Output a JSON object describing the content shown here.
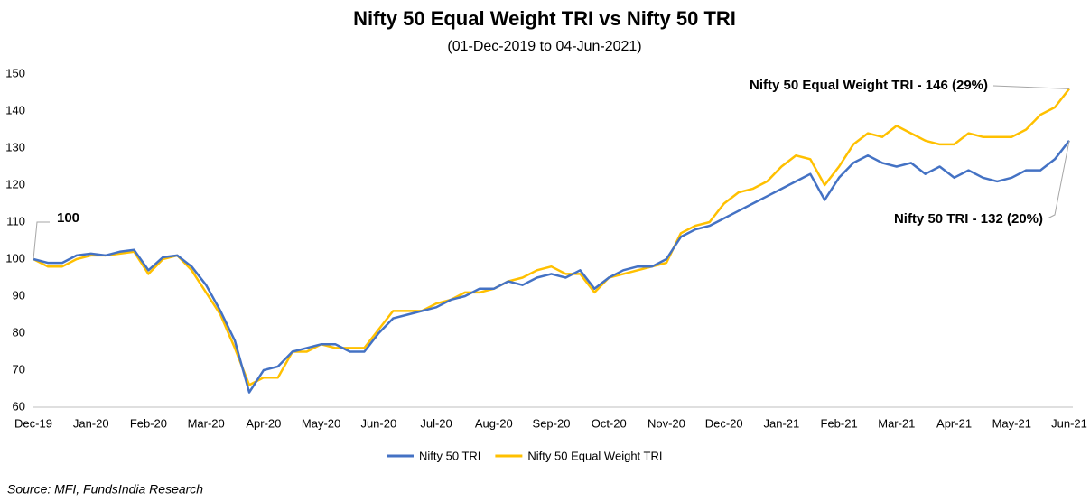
{
  "chart_data": {
    "type": "line",
    "title": "Nifty 50 Equal Weight TRI vs Nifty 50 TRI",
    "subtitle": "(01-Dec-2019 to 04-Jun-2021)",
    "categories": [
      "Dec-19",
      null,
      null,
      null,
      "Jan-20",
      null,
      null,
      null,
      "Feb-20",
      null,
      null,
      null,
      "Mar-20",
      null,
      null,
      null,
      "Apr-20",
      null,
      null,
      null,
      "May-20",
      null,
      null,
      null,
      "Jun-20",
      null,
      null,
      null,
      "Jul-20",
      null,
      null,
      null,
      "Aug-20",
      null,
      null,
      null,
      "Sep-20",
      null,
      null,
      null,
      "Oct-20",
      null,
      null,
      null,
      "Nov-20",
      null,
      null,
      null,
      "Dec-20",
      null,
      null,
      null,
      "Jan-21",
      null,
      null,
      null,
      "Feb-21",
      null,
      null,
      null,
      "Mar-21",
      null,
      null,
      null,
      "Apr-21",
      null,
      null,
      null,
      "May-21",
      null,
      null,
      null,
      "Jun-21"
    ],
    "series": [
      {
        "name": "Nifty 50 TRI",
        "color": "#4472c4",
        "values": [
          100,
          99,
          99,
          101,
          101.5,
          101,
          102,
          102.5,
          97,
          100.5,
          101,
          98,
          93,
          86,
          78,
          64,
          70,
          71,
          75,
          76,
          77,
          77,
          75,
          75,
          80,
          84,
          85,
          86,
          87,
          89,
          90,
          92,
          92,
          94,
          93,
          95,
          96,
          95,
          97,
          92,
          95,
          97,
          98,
          98,
          100,
          106,
          108,
          109,
          111,
          113,
          115,
          117,
          119,
          121,
          123,
          116,
          122,
          126,
          128,
          126,
          125,
          126,
          123,
          125,
          122,
          124,
          122,
          121,
          122,
          124,
          124,
          127,
          132
        ]
      },
      {
        "name": "Nifty 50 Equal Weight TRI",
        "color": "#ffc000",
        "values": [
          100,
          98,
          98,
          100,
          101,
          101,
          101.5,
          102,
          96,
          100,
          101,
          97,
          91,
          85,
          76,
          66,
          68,
          68,
          75,
          75,
          77,
          76,
          76,
          76,
          81,
          86,
          86,
          86,
          88,
          89,
          91,
          91,
          92,
          94,
          95,
          97,
          98,
          96,
          96,
          91,
          95,
          96,
          97,
          98,
          99,
          107,
          109,
          110,
          115,
          118,
          119,
          121,
          125,
          128,
          127,
          120,
          125,
          131,
          134,
          133,
          136,
          134,
          132,
          131,
          131,
          134,
          133,
          133,
          133,
          135,
          139,
          141,
          146
        ]
      }
    ],
    "ylim": [
      60,
      150
    ],
    "yticks": [
      60,
      70,
      80,
      90,
      100,
      110,
      120,
      130,
      140,
      150
    ],
    "annotations": [
      "100",
      "Nifty 50 Equal Weight TRI - 146 (29%)",
      "Nifty 50 TRI - 132 (20%)"
    ],
    "source": "Source: MFI, FundsIndia Research",
    "grid": false,
    "legend": "bottom"
  }
}
